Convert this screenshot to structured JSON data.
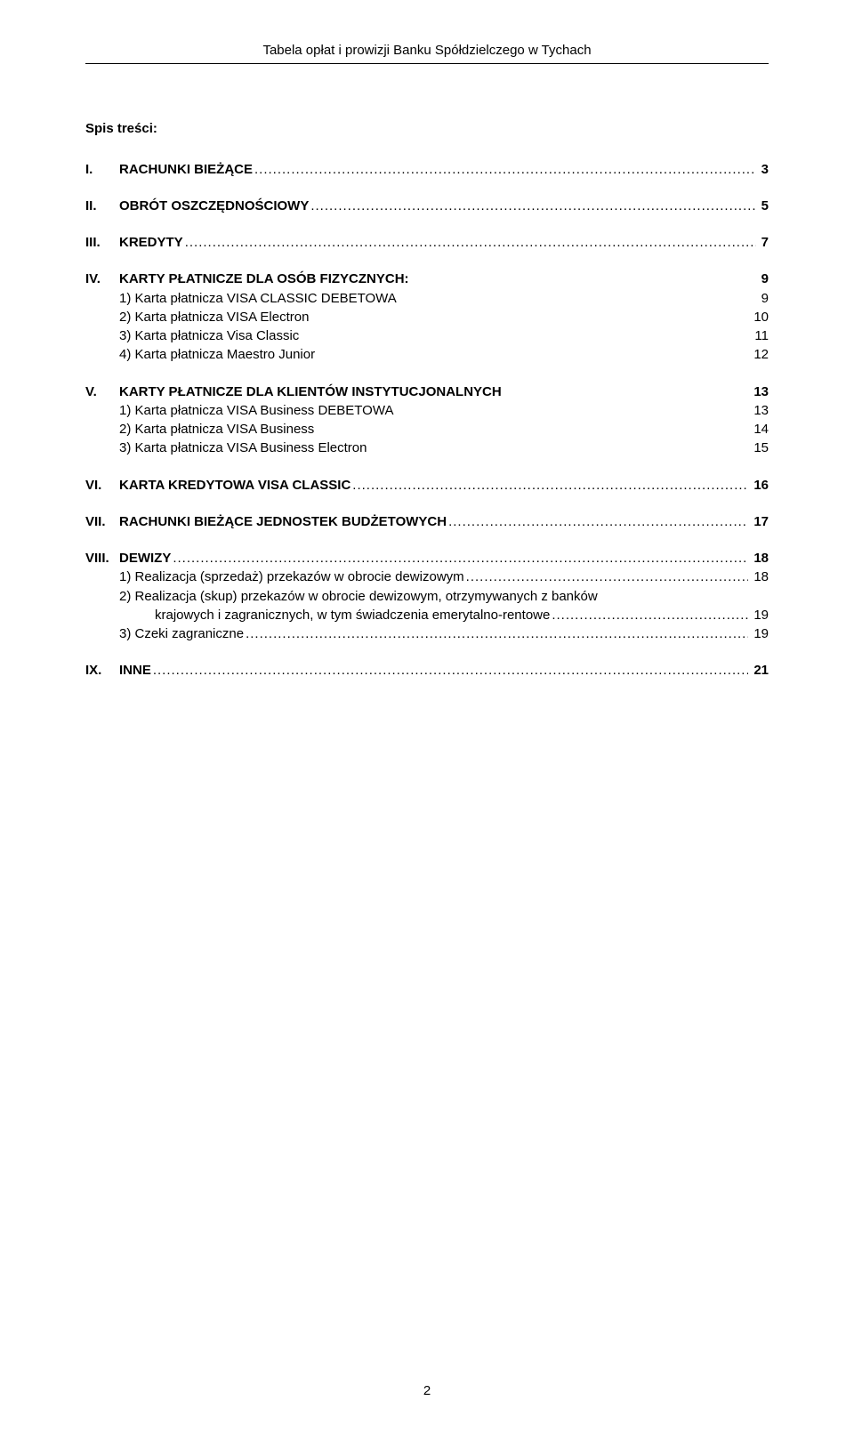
{
  "header": "Tabela opłat i prowizji Banku Spółdzielczego w Tychach",
  "spis_heading": "Spis treści:",
  "toc": [
    {
      "num": "I.",
      "label": "RACHUNKI BIEŻĄCE",
      "page": "3",
      "bold": true,
      "dotted": true
    },
    {
      "num": "II.",
      "label": "OBRÓT OSZCZĘDNOŚCIOWY",
      "page": "5",
      "bold": true,
      "dotted": true
    },
    {
      "num": "III.",
      "label": "KREDYTY",
      "page": "7",
      "bold": true,
      "dotted": true
    },
    {
      "num": "IV.",
      "label": "KARTY PŁATNICZE DLA OSÓB FIZYCZNYCH:",
      "page": "9",
      "bold": true,
      "dotted": false,
      "subs": [
        {
          "label": "1) Karta  płatnicza VISA CLASSIC DEBETOWA",
          "page": "9",
          "dotted": false
        },
        {
          "label": "2) Karta płatnicza VISA Electron",
          "page": "10",
          "dotted": false
        },
        {
          "label": "3) Karta płatnicza Visa Classic",
          "page": "11",
          "dotted": false
        },
        {
          "label": "4) Karta płatnicza Maestro Junior",
          "page": "12",
          "dotted": false
        }
      ]
    },
    {
      "num": "V.",
      "label": "KARTY PŁATNICZE DLA KLIENTÓW INSTYTUCJONALNYCH",
      "page": "13",
      "bold": true,
      "dotted": false,
      "subs": [
        {
          "label": "1) Karta płatnicza VISA Business DEBETOWA",
          "page": "13",
          "dotted": false
        },
        {
          "label": "2) Karta płatnicza VISA Business",
          "page": "14",
          "dotted": false
        },
        {
          "label": "3) Karta płatnicza VISA Business Electron",
          "page": "15",
          "dotted": false
        }
      ]
    },
    {
      "num": "VI.",
      "label": "KARTA KREDYTOWA VISA CLASSIC",
      "page": "16",
      "bold": true,
      "dotted": true
    },
    {
      "num": "VII.",
      "label": "RACHUNKI BIEŻĄCE JEDNOSTEK BUDŻETOWYCH",
      "page": "17",
      "bold": true,
      "dotted": true
    },
    {
      "num": "VIII.",
      "label": "DEWIZY",
      "page": "18",
      "bold": true,
      "dotted": true,
      "num_width": 38,
      "subs": [
        {
          "label": "1) Realizacja (sprzedaż) przekazów w obrocie dewizowym",
          "page": "18",
          "dotted": true
        },
        {
          "wrap_lines": [
            "2) Realizacja (skup) przekazów w obrocie dewizowym, otrzymywanych z banków",
            "krajowych i zagranicznych,  w tym świadczenia emerytalno-rentowe"
          ],
          "page": "19",
          "dotted": true
        },
        {
          "label": "3) Czeki zagraniczne",
          "page": "19",
          "dotted": true
        }
      ]
    },
    {
      "num": "IX.",
      "label": "INNE",
      "page": "21",
      "bold": true,
      "dotted": true
    }
  ],
  "footer_page": "2"
}
